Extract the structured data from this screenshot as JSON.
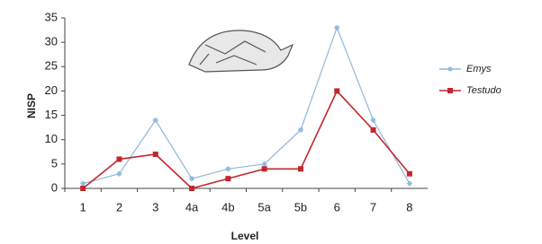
{
  "chart_data": {
    "type": "line",
    "x_label": "Level",
    "y_label": "NISP",
    "categories": [
      "1",
      "2",
      "3",
      "4a",
      "4b",
      "5a",
      "5b",
      "6",
      "7",
      "8"
    ],
    "series": [
      {
        "name": "Emys",
        "color": "#8fb8e0",
        "values": [
          1,
          3,
          14,
          2,
          4,
          5,
          12,
          33,
          14,
          1
        ]
      },
      {
        "name": "Testudo",
        "color": "#c0272d",
        "values": [
          0,
          6,
          7,
          0,
          2,
          4,
          4,
          20,
          12,
          3
        ]
      }
    ],
    "ylim": [
      0,
      35
    ],
    "yticks": [
      0,
      5,
      10,
      15,
      20,
      25,
      30,
      35
    ],
    "legend": "right"
  }
}
